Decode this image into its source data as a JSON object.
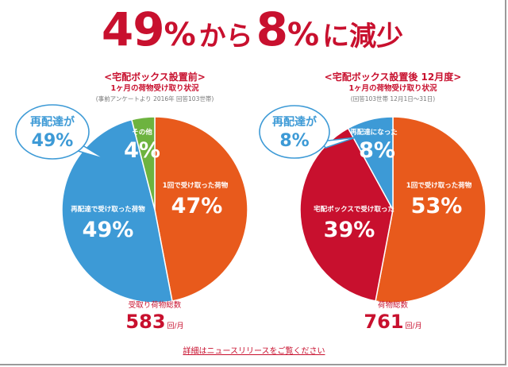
{
  "headline": {
    "from_num": "49",
    "pct1": "%",
    "kara": "から",
    "to_num": "8",
    "pct2": "%",
    "suffix": "に減少"
  },
  "chart_data": [
    {
      "type": "pie",
      "title": "<宅配ボックス設置前>",
      "subtitle": "1ヶ月の荷物受け取り状況",
      "note": "(事前アンケートより 2016年 回答103世帯)",
      "slices": [
        {
          "label": "1回で受け取った荷物",
          "value": 47,
          "value_label": "47%",
          "color": "#e85a1c"
        },
        {
          "label": "再配達で受け取った荷物",
          "value": 49,
          "value_label": "49%",
          "color": "#3d9ad6"
        },
        {
          "label": "その他",
          "value": 4,
          "value_label": "4%",
          "color": "#6db33f"
        }
      ],
      "callout": {
        "label": "再配達が",
        "value": "49%"
      },
      "total_label": "受取り荷物総数",
      "total_value": "583",
      "total_unit": "回/月"
    },
    {
      "type": "pie",
      "title": "<宅配ボックス設置後 12月度>",
      "subtitle": "1ヶ月の荷物受け取り状況",
      "note": "(回答103世帯 12月1日～31日)",
      "slices": [
        {
          "label": "1回で受け取った荷物",
          "value": 53,
          "value_label": "53%",
          "color": "#e85a1c"
        },
        {
          "label": "宅配ボックスで受け取った",
          "value": 39,
          "value_label": "39%",
          "color": "#c8102e"
        },
        {
          "label": "再配達になった",
          "value": 8,
          "value_label": "8%",
          "color": "#3d9ad6"
        }
      ],
      "callout": {
        "label": "再配達が",
        "value": "8%"
      },
      "total_label": "荷物総数",
      "total_value": "761",
      "total_unit": "回/月"
    }
  ],
  "footer": {
    "link_text": "詳細はニュースリリースをご覧ください"
  },
  "colors": {
    "accent": "#c8102e",
    "orange": "#e85a1c",
    "blue": "#3d9ad6",
    "green": "#6db33f"
  }
}
